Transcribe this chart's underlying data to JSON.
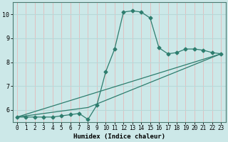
{
  "xlabel": "Humidex (Indice chaleur)",
  "ylabel": "",
  "background_color": "#cce8e8",
  "grid_color_x": "#e8b0b0",
  "grid_color_y": "#b8d8d8",
  "line_color": "#2e7d6e",
  "xlim": [
    -0.5,
    23.5
  ],
  "ylim": [
    5.5,
    10.5
  ],
  "yticks": [
    6,
    7,
    8,
    9,
    10
  ],
  "xticks": [
    0,
    1,
    2,
    3,
    4,
    5,
    6,
    7,
    8,
    9,
    10,
    11,
    12,
    13,
    14,
    15,
    16,
    17,
    18,
    19,
    20,
    21,
    22,
    23
  ],
  "curve1_x": [
    0,
    1,
    2,
    3,
    4,
    5,
    6,
    7,
    8,
    9,
    10,
    11,
    12,
    13,
    14,
    15,
    16,
    17,
    18,
    19,
    20,
    21,
    22,
    23
  ],
  "curve1_y": [
    5.7,
    5.7,
    5.7,
    5.7,
    5.7,
    5.75,
    5.8,
    5.85,
    5.6,
    6.2,
    7.6,
    8.55,
    10.1,
    10.15,
    10.1,
    9.85,
    8.6,
    8.35,
    8.4,
    8.55,
    8.55,
    8.5,
    8.4,
    8.35
  ],
  "curve2_x": [
    0,
    23
  ],
  "curve2_y": [
    5.7,
    8.35
  ],
  "curve3_x": [
    0,
    8,
    23
  ],
  "curve3_y": [
    5.7,
    6.1,
    8.35
  ],
  "xlabel_fontsize": 6.5,
  "tick_fontsize": 6,
  "marker_size": 2.5
}
